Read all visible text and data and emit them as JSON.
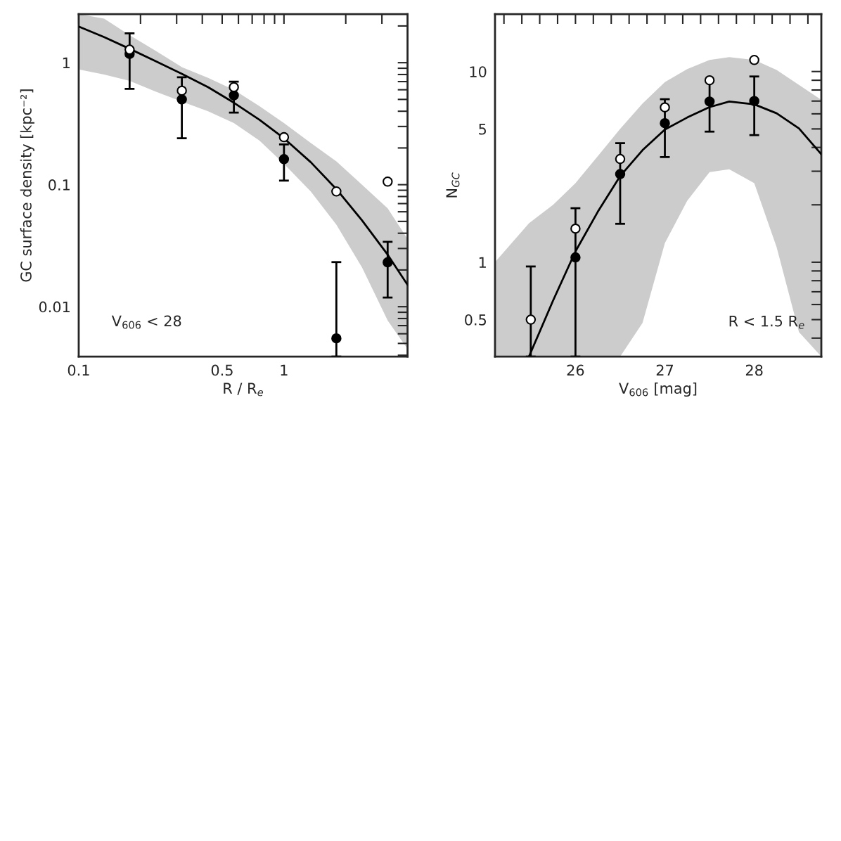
{
  "chart_data": [
    {
      "type": "scatter",
      "xlabel": "R / R$_{e}$",
      "ylabel": "GC surface density [kpc⁻²]",
      "log": "xy",
      "grid": false,
      "legend": false,
      "annotations": [
        "V$_{606}$ < 28"
      ],
      "xlim": [
        0.1,
        4.0
      ],
      "ylim": [
        0.0039,
        2.5
      ],
      "xticks": [
        0.1,
        {
          "value": 0.2,
          "label": null
        },
        {
          "value": 0.3,
          "label": null
        },
        {
          "value": 0.4,
          "label": null
        },
        0.5,
        {
          "value": 0.6,
          "label": null
        },
        {
          "value": 0.7,
          "label": null
        },
        {
          "value": 0.8,
          "label": null
        },
        {
          "value": 0.9,
          "label": null
        },
        1,
        {
          "value": 2,
          "label": null
        },
        {
          "value": 3,
          "label": null
        }
      ],
      "yticks": [
        {
          "value": 0.004,
          "label": null
        },
        {
          "value": 0.005,
          "label": null
        },
        {
          "value": 0.006,
          "label": null
        },
        {
          "value": 0.007,
          "label": null
        },
        {
          "value": 0.008,
          "label": null
        },
        {
          "value": 0.009,
          "label": null
        },
        0.01,
        {
          "value": 0.02,
          "label": null
        },
        {
          "value": 0.03,
          "label": null
        },
        {
          "value": 0.04,
          "label": null
        },
        {
          "value": 0.05,
          "label": null
        },
        {
          "value": 0.06,
          "label": null
        },
        {
          "value": 0.07,
          "label": null
        },
        {
          "value": 0.08,
          "label": null
        },
        {
          "value": 0.09,
          "label": null
        },
        0.1,
        {
          "value": 0.2,
          "label": null
        },
        {
          "value": 0.3,
          "label": null
        },
        {
          "value": 0.4,
          "label": null
        },
        {
          "value": 0.5,
          "label": null
        },
        {
          "value": 0.6,
          "label": null
        },
        {
          "value": 0.7,
          "label": null
        },
        {
          "value": 0.8,
          "label": null
        },
        {
          "value": 0.9,
          "label": null
        },
        1,
        {
          "value": 2,
          "label": null
        }
      ],
      "series": [
        {
          "type": "line",
          "color": "#000000",
          "line_style": "solid",
          "x": [
            0.1,
            0.133,
            0.177,
            0.237,
            0.318,
            0.427,
            0.57,
            0.76,
            1,
            1.35,
            1.8,
            2.4,
            3.2,
            4.0
          ],
          "values": [
            1.98,
            1.62,
            1.3,
            1.03,
            0.81,
            0.63,
            0.47,
            0.34,
            0.24,
            0.153,
            0.092,
            0.051,
            0.0267,
            0.0151
          ],
          "upper": [
            2.5,
            2.3,
            1.68,
            1.25,
            0.92,
            0.75,
            0.6,
            0.44,
            0.32,
            0.22,
            0.155,
            0.1,
            0.064,
            0.036
          ],
          "lower": [
            0.88,
            0.8,
            0.71,
            0.58,
            0.48,
            0.4,
            0.32,
            0.23,
            0.148,
            0.088,
            0.047,
            0.021,
            0.0077,
            0.0045
          ]
        },
        {
          "marker": "circle",
          "color": "#000000",
          "x": [
            0.177,
            0.318,
            0.57,
            1,
            1.8,
            3.2
          ],
          "values": [
            1.18,
            0.5,
            0.54,
            0.162,
            0.0055,
            0.0231
          ],
          "errors": [
            [
              0.61,
              1.74
            ],
            [
              0.24,
              0.76
            ],
            [
              0.39,
              0.7
            ],
            [
              0.108,
              0.214
            ],
            [
              0.0039,
              0.0232
            ],
            [
              0.0119,
              0.034
            ]
          ]
        },
        {
          "marker": "circle",
          "color": "#ffffff",
          "x": [
            0.177,
            0.318,
            0.57,
            1,
            1.8,
            3.2
          ],
          "values": [
            1.28,
            0.59,
            0.63,
            0.245,
            0.088,
            0.106
          ]
        }
      ]
    },
    {
      "type": "scatter",
      "xlabel": "V$_{606}$ [mag]",
      "ylabel": "N$_{GC}$",
      "log": "y",
      "grid": false,
      "legend": false,
      "annotations": [
        "R < 1.5 R$_{e}$"
      ],
      "xlim": [
        25.1,
        28.75
      ],
      "ylim": [
        0.32,
        20
      ],
      "xticks": [
        {
          "value": 25.2,
          "label": null
        },
        {
          "value": 25.4,
          "label": null
        },
        {
          "value": 25.6,
          "label": null
        },
        {
          "value": 25.8,
          "label": null
        },
        26,
        {
          "value": 26.2,
          "label": null
        },
        {
          "value": 26.4,
          "label": null
        },
        {
          "value": 26.6,
          "label": null
        },
        {
          "value": 26.8,
          "label": null
        },
        27,
        {
          "value": 27.2,
          "label": null
        },
        {
          "value": 27.4,
          "label": null
        },
        {
          "value": 27.6,
          "label": null
        },
        {
          "value": 27.8,
          "label": null
        },
        28,
        {
          "value": 28.2,
          "label": null
        },
        {
          "value": 28.4,
          "label": null
        },
        {
          "value": 28.6,
          "label": null
        }
      ],
      "yticks": [
        {
          "value": 0.4,
          "label": null
        },
        0.5,
        {
          "value": 0.6,
          "label": null
        },
        {
          "value": 0.7,
          "label": null
        },
        {
          "value": 0.8,
          "label": null
        },
        {
          "value": 0.9,
          "label": null
        },
        1,
        {
          "value": 2,
          "label": null
        },
        {
          "value": 3,
          "label": null
        },
        {
          "value": 4,
          "label": null
        },
        5,
        {
          "value": 6,
          "label": null
        },
        {
          "value": 7,
          "label": null
        },
        {
          "value": 8,
          "label": null
        },
        {
          "value": 9,
          "label": null
        },
        10,
        {
          "value": 20,
          "label": null
        }
      ],
      "series": [
        {
          "type": "line",
          "color": "#000000",
          "line_style": "solid",
          "x": [
            25.1,
            25.48,
            25.75,
            26,
            26.25,
            26.5,
            26.75,
            27,
            27.25,
            27.5,
            27.72,
            28,
            28.25,
            28.5,
            28.75
          ],
          "values": [
            null,
            0.32,
            0.63,
            1.14,
            1.84,
            2.83,
            3.87,
            4.96,
            5.74,
            6.51,
            6.96,
            6.73,
            6.04,
            5.03,
            3.68
          ],
          "upper": [
            1.0,
            1.6,
            2.0,
            2.6,
            3.6,
            5.0,
            6.8,
            8.8,
            10.3,
            11.5,
            11.9,
            11.5,
            10.2,
            8.5,
            7.1
          ],
          "lower": [
            0.32,
            0.32,
            0.32,
            0.32,
            0.32,
            0.32,
            0.48,
            1.26,
            2.1,
            2.97,
            3.07,
            2.6,
            1.2,
            0.43,
            0.32
          ]
        },
        {
          "marker": "circle",
          "color": "#000000",
          "x": [
            26,
            26.5,
            27,
            27.5,
            28
          ],
          "values": [
            1.06,
            2.9,
            5.36,
            6.96,
            7.0
          ],
          "errors": [
            [
              0.32,
              1.92
            ],
            [
              1.59,
              4.21
            ],
            [
              3.56,
              7.16
            ],
            [
              4.84,
              9.03
            ],
            [
              4.64,
              9.42
            ]
          ]
        },
        {
          "marker": "circle",
          "color": "#ffffff",
          "x": [
            25.5,
            26,
            26.5,
            27,
            27.5,
            28
          ],
          "values": [
            0.5,
            1.5,
            3.48,
            6.49,
            9.0,
            11.5
          ],
          "errors": [
            [
              0.32,
              0.95
            ],
            null,
            null,
            null,
            null,
            null
          ]
        }
      ]
    }
  ]
}
